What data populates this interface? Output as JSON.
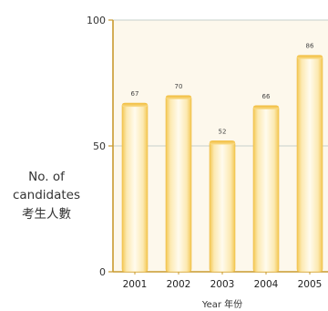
{
  "chart_data": {
    "type": "bar",
    "categories": [
      "2001",
      "2002",
      "2003",
      "2004",
      "2005"
    ],
    "values": [
      67,
      70,
      52,
      66,
      86
    ],
    "data_labels": [
      "67",
      "70",
      "52",
      "66",
      "86"
    ],
    "ylim": [
      0,
      100
    ],
    "yticks": [
      "0",
      "50",
      "100"
    ],
    "ylabel_lines": [
      "No. of",
      "candidates",
      "考生人數"
    ],
    "xlabel": "Year 年份",
    "grid": "horizontal at 50 and 100",
    "colors": {
      "bar_fill": "#fcebb7",
      "bar_edge": "#f1bf45",
      "plot_background": "#fdf8ec",
      "axis": "#c99a2e",
      "gridline": "#c7d0cb"
    }
  }
}
